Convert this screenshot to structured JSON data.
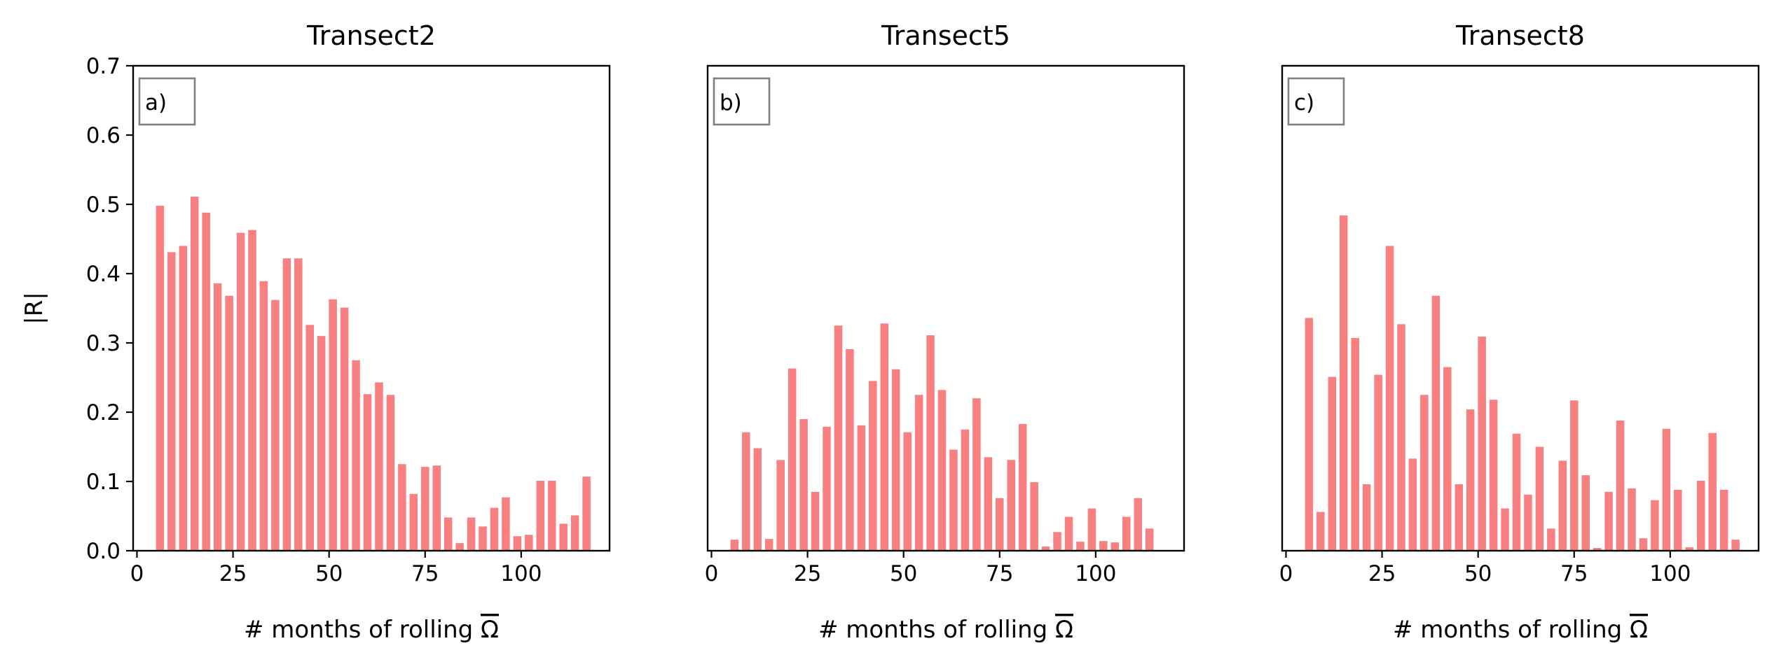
{
  "chart_data": [
    {
      "type": "bar",
      "title": "Transect2",
      "panel_label": "a)",
      "xlabel": "# months of rolling",
      "xlabel_symbol": "Ω",
      "ylabel": "|R|",
      "x": [
        6,
        9,
        12,
        15,
        18,
        21,
        24,
        27,
        30,
        33,
        36,
        39,
        42,
        45,
        48,
        51,
        54,
        57,
        60,
        63,
        66,
        69,
        72,
        75,
        78,
        81,
        84,
        87,
        90,
        93,
        96,
        99,
        102,
        105,
        108,
        111,
        114,
        117
      ],
      "values": [
        0.498,
        0.431,
        0.44,
        0.511,
        0.488,
        0.386,
        0.368,
        0.459,
        0.463,
        0.389,
        0.362,
        0.422,
        0.422,
        0.326,
        0.31,
        0.363,
        0.351,
        0.275,
        0.226,
        0.243,
        0.225,
        0.125,
        0.082,
        0.121,
        0.123,
        0.048,
        0.011,
        0.048,
        0.035,
        0.062,
        0.077,
        0.021,
        0.023,
        0.101,
        0.101,
        0.039,
        0.051,
        0.107
      ],
      "xlim": [
        -1,
        123
      ],
      "ylim": [
        0,
        0.7
      ],
      "xticks": [
        0,
        25,
        50,
        75,
        100
      ],
      "yticks": [
        "0.0",
        "0.1",
        "0.2",
        "0.3",
        "0.4",
        "0.5",
        "0.6",
        "0.7"
      ],
      "show_yticks": true,
      "bar_color": "#f88080",
      "grid": false,
      "legend": false
    },
    {
      "type": "bar",
      "title": "Transect5",
      "panel_label": "b)",
      "xlabel": "# months of rolling",
      "xlabel_symbol": "Ω",
      "ylabel": "",
      "x": [
        6,
        9,
        12,
        15,
        18,
        21,
        24,
        27,
        30,
        33,
        36,
        39,
        42,
        45,
        48,
        51,
        54,
        57,
        60,
        63,
        66,
        69,
        72,
        75,
        78,
        81,
        84,
        87,
        90,
        93,
        96,
        99,
        102,
        105,
        108,
        111,
        114,
        117
      ],
      "values": [
        0.016,
        0.171,
        0.148,
        0.017,
        0.131,
        0.263,
        0.19,
        0.085,
        0.179,
        0.325,
        0.291,
        0.181,
        0.245,
        0.328,
        0.262,
        0.171,
        0.225,
        0.311,
        0.232,
        0.146,
        0.175,
        0.22,
        0.135,
        0.076,
        0.131,
        0.183,
        0.099,
        0.006,
        0.027,
        0.049,
        0.013,
        0.061,
        0.014,
        0.012,
        0.049,
        0.076,
        0.032,
        0.0
      ],
      "xlim": [
        -1,
        123
      ],
      "ylim": [
        0,
        0.7
      ],
      "xticks": [
        0,
        25,
        50,
        75,
        100
      ],
      "show_yticks": false,
      "bar_color": "#f88080",
      "grid": false,
      "legend": false
    },
    {
      "type": "bar",
      "title": "Transect8",
      "panel_label": "c)",
      "xlabel": "# months of rolling",
      "xlabel_symbol": "Ω",
      "ylabel": "",
      "x": [
        6,
        9,
        12,
        15,
        18,
        21,
        24,
        27,
        30,
        33,
        36,
        39,
        42,
        45,
        48,
        51,
        54,
        57,
        60,
        63,
        66,
        69,
        72,
        75,
        78,
        81,
        84,
        87,
        90,
        93,
        96,
        99,
        102,
        105,
        108,
        111,
        114,
        117
      ],
      "values": [
        0.336,
        0.056,
        0.251,
        0.484,
        0.307,
        0.096,
        0.254,
        0.44,
        0.327,
        0.133,
        0.225,
        0.368,
        0.265,
        0.096,
        0.204,
        0.309,
        0.218,
        0.061,
        0.169,
        0.081,
        0.15,
        0.032,
        0.13,
        0.217,
        0.109,
        0.004,
        0.085,
        0.188,
        0.09,
        0.018,
        0.073,
        0.176,
        0.088,
        0.005,
        0.101,
        0.17,
        0.088,
        0.016
      ],
      "xlim": [
        -1,
        123
      ],
      "ylim": [
        0,
        0.7
      ],
      "xticks": [
        0,
        25,
        50,
        75,
        100
      ],
      "show_yticks": false,
      "bar_color": "#f88080",
      "grid": false,
      "legend": false
    }
  ]
}
